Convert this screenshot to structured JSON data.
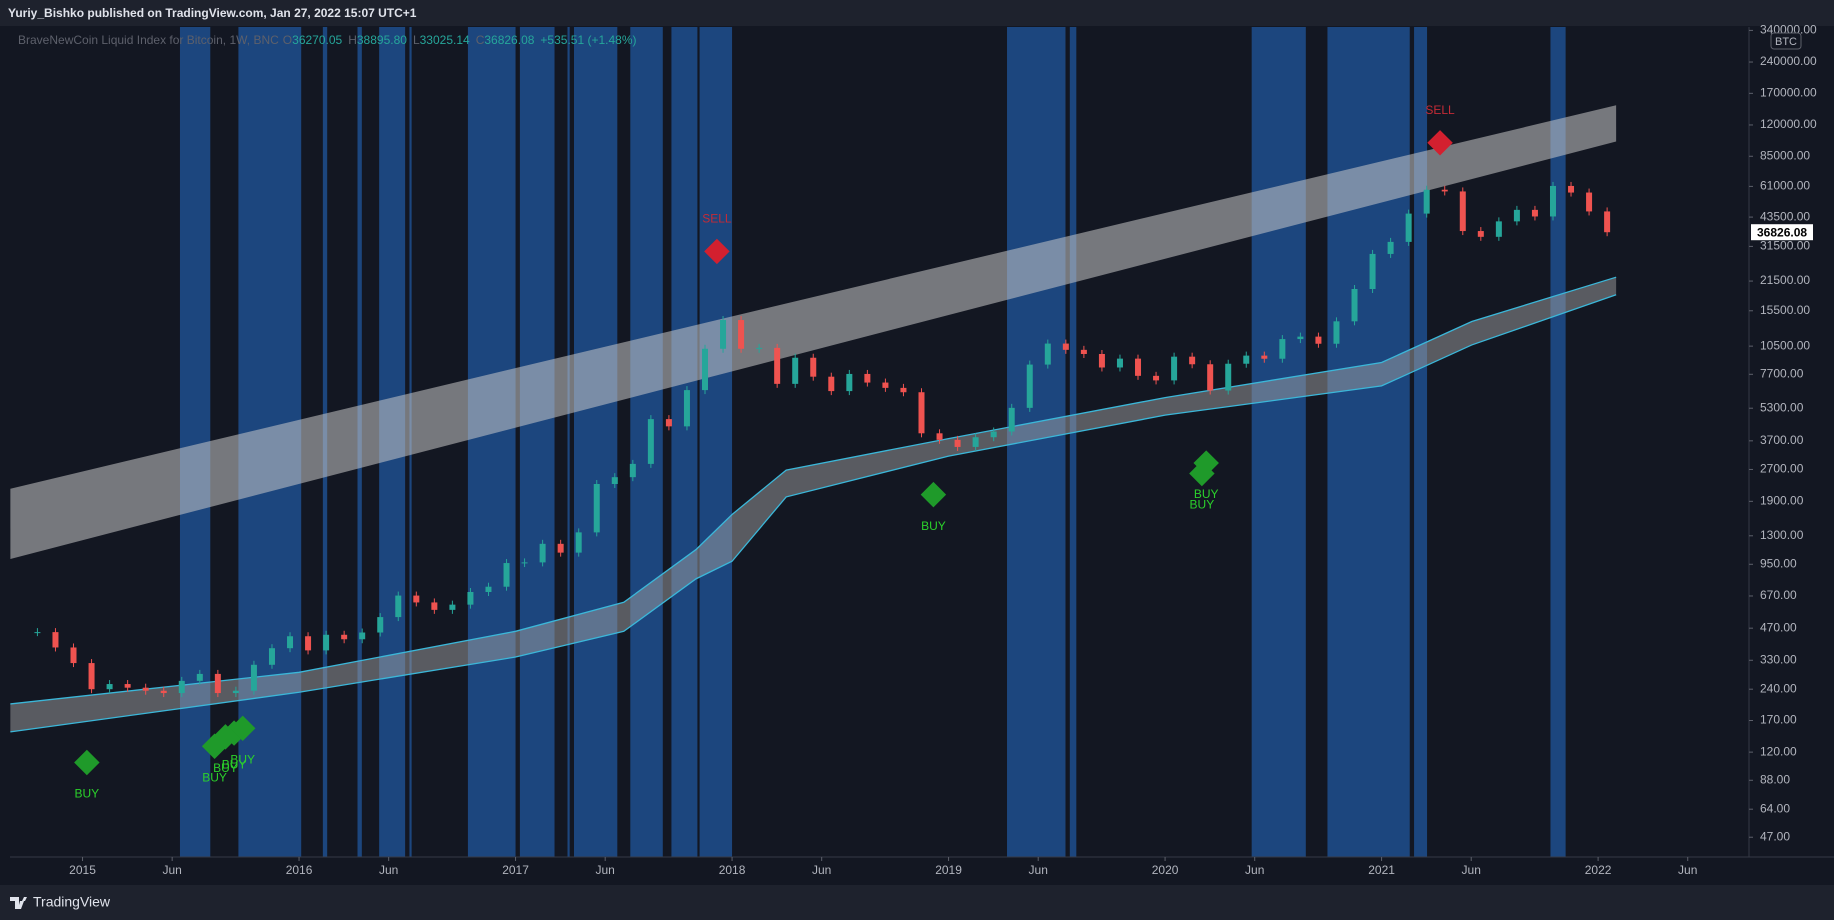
{
  "header": {
    "text": "Yuriy_Bishko published on TradingView.com, Jan 27, 2022 15:07 UTC+1"
  },
  "footer": {
    "brand": "TradingView"
  },
  "chart_data": {
    "type": "candlestick",
    "title": "BraveNewCoin Liquid Index for Bitcoin, 1W, BNC",
    "ohlc": [
      {
        "key": "O",
        "value": 36270.05
      },
      {
        "key": "H",
        "value": {
          "value": 38895.8,
          "label": "38895.80"
        }
      },
      {
        "key": "L",
        "value": 33025.14
      },
      {
        "key": "C",
        "value": 36826.08
      }
    ],
    "change": "+535.51 (+1.48%)",
    "currency_label": "BTC",
    "last_price": 36826.08,
    "log_scale": true,
    "grid": false,
    "up_color": "#26a69a",
    "down_color": "#ef5350",
    "highlight_color": "#1f4f8e",
    "x": [
      "2014-10",
      "2014-11",
      "2014-12",
      "2015-01",
      "2015-02",
      "2015-03",
      "2015-04",
      "2015-05",
      "2015-06",
      "2015-07",
      "2015-08",
      "2015-09",
      "2015-10",
      "2015-11",
      "2015-12",
      "2016-01",
      "2016-02",
      "2016-03",
      "2016-04",
      "2016-05",
      "2016-06",
      "2016-07",
      "2016-08",
      "2016-09",
      "2016-10",
      "2016-11",
      "2016-12",
      "2017-01",
      "2017-02",
      "2017-03",
      "2017-04",
      "2017-05",
      "2017-06",
      "2017-07",
      "2017-08",
      "2017-09",
      "2017-10",
      "2017-11",
      "2017-12",
      "2018-01",
      "2018-02",
      "2018-03",
      "2018-04",
      "2018-05",
      "2018-06",
      "2018-07",
      "2018-08",
      "2018-09",
      "2018-10",
      "2018-11",
      "2018-12",
      "2019-01",
      "2019-02",
      "2019-03",
      "2019-04",
      "2019-05",
      "2019-06",
      "2019-07",
      "2019-08",
      "2019-09",
      "2019-10",
      "2019-11",
      "2019-12",
      "2020-01",
      "2020-02",
      "2020-03",
      "2020-04",
      "2020-05",
      "2020-06",
      "2020-07",
      "2020-08",
      "2020-09",
      "2020-10",
      "2020-11",
      "2020-12",
      "2021-01",
      "2021-02",
      "2021-03",
      "2021-04",
      "2021-05",
      "2021-06",
      "2021-07",
      "2021-08",
      "2021-09",
      "2021-10",
      "2021-11",
      "2021-12",
      "2022-01"
    ],
    "values": [
      450,
      380,
      320,
      240,
      254,
      244,
      236,
      230,
      263,
      284,
      230,
      236,
      314,
      377,
      430,
      368,
      437,
      416,
      448,
      531,
      673,
      624,
      575,
      609,
      700,
      742,
      963,
      970,
      1190,
      1080,
      1350,
      2300,
      2480,
      2870,
      4700,
      4340,
      6470,
      10200,
      14000,
      10200,
      10300,
      6930,
      9240,
      7500,
      6400,
      7730,
      7030,
      6630,
      6320,
      4020,
      3740,
      3460,
      3850,
      4100,
      5320,
      8570,
      10800,
      10080,
      9630,
      8300,
      9150,
      7570,
      7200,
      9350,
      8600,
      6440,
      8650,
      9460,
      9140,
      11350,
      11660,
      10780,
      13800,
      19700,
      28990,
      33100,
      45200,
      58800,
      57700,
      37300,
      35000,
      41500,
      47100,
      43800,
      61300,
      57000,
      46300,
      36826
    ],
    "gray_band": {
      "color": "#c8c8c8",
      "x": [
        "2014-09",
        "2022-02"
      ],
      "upper": [
        2183,
        149000
      ],
      "lower": [
        1007,
        100000
      ]
    },
    "cyan_band": {
      "color": "#3bb7d9",
      "x": [
        "2014-09",
        "2016-01",
        "2017-01",
        "2017-07",
        "2017-11",
        "2018-01",
        "2018-04",
        "2019-01",
        "2020-01",
        "2021-01",
        "2021-06",
        "2022-02"
      ],
      "upper": [
        204,
        289,
        454,
        625,
        1117,
        1644,
        2680,
        3793,
        5957,
        8770,
        13770,
        22440
      ],
      "lower": [
        150,
        232,
        342,
        454,
        809,
        982,
        1995,
        3126,
        4909,
        6776,
        10640,
        18500
      ]
    },
    "highlights": [
      [
        2015.45,
        2015.59
      ],
      [
        2015.72,
        2016.01
      ],
      [
        2016.11,
        2016.13
      ],
      [
        2016.27,
        2016.29
      ],
      [
        2016.37,
        2016.49
      ],
      [
        2016.51,
        2016.52
      ],
      [
        2016.78,
        2017.0
      ],
      [
        2017.02,
        2017.18
      ],
      [
        2017.24,
        2017.25
      ],
      [
        2017.27,
        2017.47
      ],
      [
        2017.53,
        2017.68
      ],
      [
        2017.72,
        2017.84
      ],
      [
        2017.85,
        2018.0
      ],
      [
        2019.27,
        2019.54
      ],
      [
        2019.56,
        2019.59
      ],
      [
        2020.4,
        2020.65
      ],
      [
        2020.75,
        2021.13
      ],
      [
        2021.15,
        2021.21
      ],
      [
        2021.78,
        2021.85
      ]
    ],
    "signals": [
      {
        "label": "BUY",
        "x": 2015.02,
        "price": 107
      },
      {
        "label": "BUY",
        "x": 2015.61,
        "price": 128
      },
      {
        "label": "BUY",
        "x": 2015.66,
        "price": 142
      },
      {
        "label": "BUY",
        "x": 2015.7,
        "price": 148
      },
      {
        "label": "BUY",
        "x": 2015.74,
        "price": 156
      },
      {
        "label": "SELL",
        "x": 2017.93,
        "price": 29800
      },
      {
        "label": "BUY",
        "x": 2018.93,
        "price": 2046
      },
      {
        "label": "BUY",
        "x": 2020.17,
        "price": 2582
      },
      {
        "label": "BUY",
        "x": 2020.19,
        "price": 2897
      },
      {
        "label": "SELL",
        "x": 2021.27,
        "price": 98600
      }
    ],
    "xlim": [
      2014.665,
      2022.697
    ],
    "xticks": [
      {
        "value": 2015,
        "label": "2015"
      },
      {
        "value": 2015.414,
        "label": "Jun"
      },
      {
        "value": 2016,
        "label": "2016"
      },
      {
        "value": 2016.414,
        "label": "Jun"
      },
      {
        "value": 2017,
        "label": "2017"
      },
      {
        "value": 2017.414,
        "label": "Jun"
      },
      {
        "value": 2018,
        "label": "2018"
      },
      {
        "value": 2018.414,
        "label": "Jun"
      },
      {
        "value": 2019,
        "label": "2019"
      },
      {
        "value": 2019.414,
        "label": "Jun"
      },
      {
        "value": 2020,
        "label": "2020"
      },
      {
        "value": 2020.414,
        "label": "Jun"
      },
      {
        "value": 2021,
        "label": "2021"
      },
      {
        "value": 2021.414,
        "label": "Jun"
      },
      {
        "value": 2022,
        "label": "2022"
      },
      {
        "value": 2022.414,
        "label": "Jun"
      }
    ],
    "ylim": [
      37.8,
      353000
    ],
    "yticks": [
      {
        "value": 47,
        "label": "47.00"
      },
      {
        "value": 64,
        "label": "64.00"
      },
      {
        "value": 88,
        "label": "88.00"
      },
      {
        "value": 120,
        "label": "120.00"
      },
      {
        "value": 170,
        "label": "170.00"
      },
      {
        "value": 240,
        "label": "240.00"
      },
      {
        "value": 330,
        "label": "330.00"
      },
      {
        "value": 470,
        "label": "470.00"
      },
      {
        "value": 670,
        "label": "670.00"
      },
      {
        "value": 950,
        "label": "950.00"
      },
      {
        "value": 1300,
        "label": "1300.00"
      },
      {
        "value": 1900,
        "label": "1900.00"
      },
      {
        "value": 2700,
        "label": "2700.00"
      },
      {
        "value": 3700,
        "label": "3700.00"
      },
      {
        "value": 5300,
        "label": "5300.00"
      },
      {
        "value": 7700,
        "label": "7700.00"
      },
      {
        "value": 10500,
        "label": "10500.00"
      },
      {
        "value": 15500,
        "label": "15500.00"
      },
      {
        "value": 21500,
        "label": "21500.00"
      },
      {
        "value": 31500,
        "label": "31500.00"
      },
      {
        "value": 43500,
        "label": "43500.00"
      },
      {
        "value": 61000,
        "label": "61000.00"
      },
      {
        "value": 85000,
        "label": "85000.00"
      },
      {
        "value": 120000,
        "label": "120000.00"
      },
      {
        "value": 170000,
        "label": "170000.00"
      },
      {
        "value": 240000,
        "label": "240000.00"
      },
      {
        "value": 340000,
        "label": "340000.00"
      }
    ]
  }
}
